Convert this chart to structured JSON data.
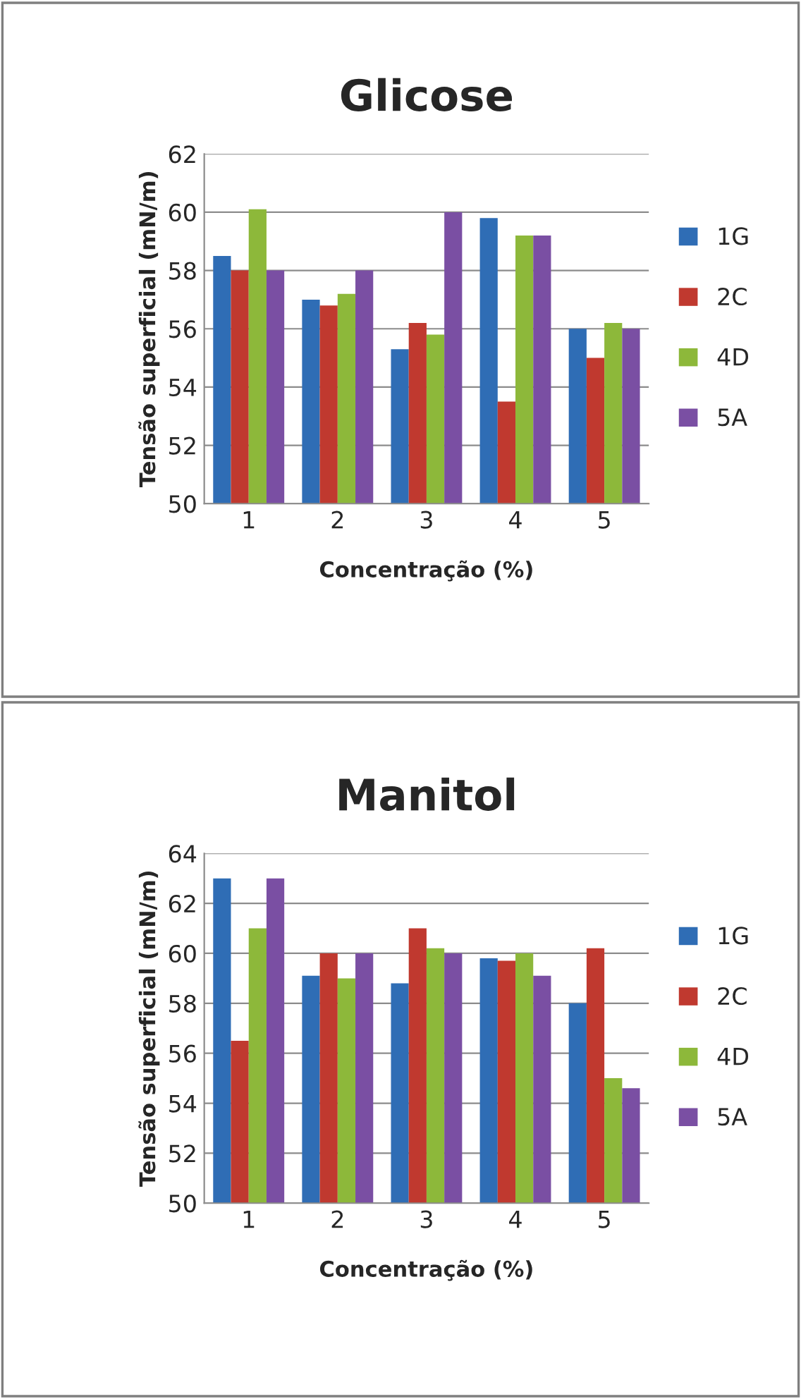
{
  "chart_data": [
    {
      "type": "bar",
      "title": "Glicose",
      "xlabel": "Concentração (%)",
      "ylabel": "Tensão superficial (mN/m)",
      "categories": [
        "1",
        "2",
        "3",
        "4",
        "5"
      ],
      "ylim": [
        50,
        62
      ],
      "yticks": [
        50,
        52,
        54,
        56,
        58,
        60,
        62
      ],
      "grid": "y",
      "legend": "right",
      "series": [
        {
          "name": "1G",
          "color": "#2f6db5",
          "values": [
            58.5,
            57,
            55.3,
            59.8,
            56
          ]
        },
        {
          "name": "2C",
          "color": "#c0392f",
          "values": [
            58,
            56.8,
            56.2,
            53.5,
            55
          ]
        },
        {
          "name": "4D",
          "color": "#8db83a",
          "values": [
            60.1,
            57.2,
            55.8,
            59.2,
            56.2
          ]
        },
        {
          "name": "5A",
          "color": "#7a4fa3",
          "values": [
            58,
            58,
            60,
            59.2,
            56
          ]
        }
      ]
    },
    {
      "type": "bar",
      "title": "Manitol",
      "xlabel": "Concentração (%)",
      "ylabel": "Tensão superficial (mN/m)",
      "categories": [
        "1",
        "2",
        "3",
        "4",
        "5"
      ],
      "ylim": [
        50,
        64
      ],
      "yticks": [
        50,
        52,
        54,
        56,
        58,
        60,
        62,
        64
      ],
      "grid": "y",
      "legend": "right",
      "series": [
        {
          "name": "1G",
          "color": "#2f6db5",
          "values": [
            63,
            59.1,
            58.8,
            59.8,
            58
          ]
        },
        {
          "name": "2C",
          "color": "#c0392f",
          "values": [
            56.5,
            60,
            61,
            59.7,
            60.2
          ]
        },
        {
          "name": "4D",
          "color": "#8db83a",
          "values": [
            61,
            59,
            60.2,
            60,
            55
          ]
        },
        {
          "name": "5A",
          "color": "#7a4fa3",
          "values": [
            63,
            60,
            60,
            59.1,
            54.6
          ]
        }
      ]
    }
  ]
}
